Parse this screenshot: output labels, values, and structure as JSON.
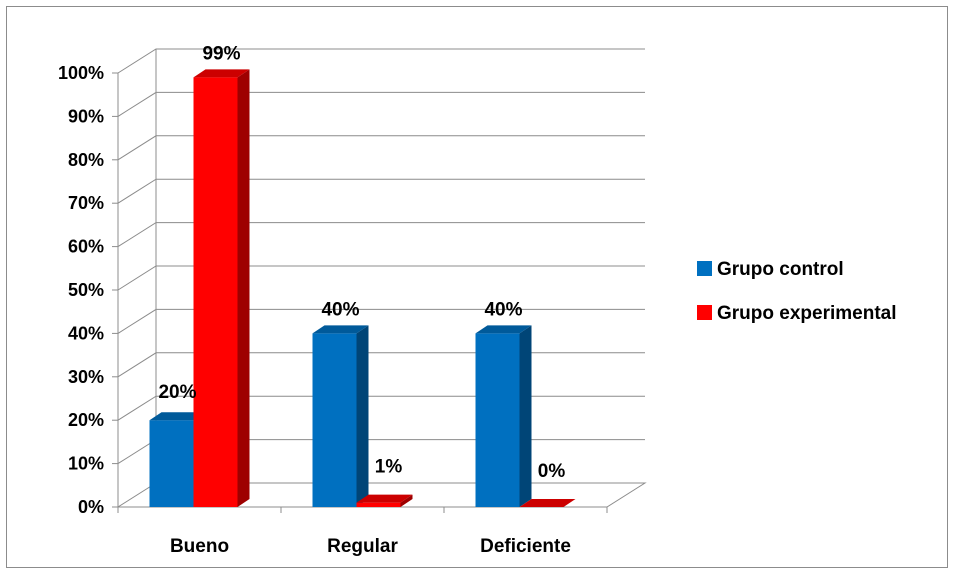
{
  "chart_data": {
    "type": "bar",
    "categories": [
      "Bueno",
      "Regular",
      "Deficiente"
    ],
    "series": [
      {
        "name": "Grupo control",
        "values": [
          20,
          40,
          40
        ],
        "labels": [
          "20%",
          "40%",
          "40%"
        ],
        "color": "#0070c0"
      },
      {
        "name": "Grupo experimental",
        "values": [
          99,
          1,
          0
        ],
        "labels": [
          "99%",
          "1%",
          "0%"
        ],
        "color": "#ff0000"
      }
    ],
    "yticks": [
      "0%",
      "10%",
      "20%",
      "30%",
      "40%",
      "50%",
      "60%",
      "70%",
      "80%",
      "90%",
      "100%"
    ],
    "ylim": [
      0,
      100
    ],
    "grid": true,
    "legend": "right",
    "three_d": true
  }
}
